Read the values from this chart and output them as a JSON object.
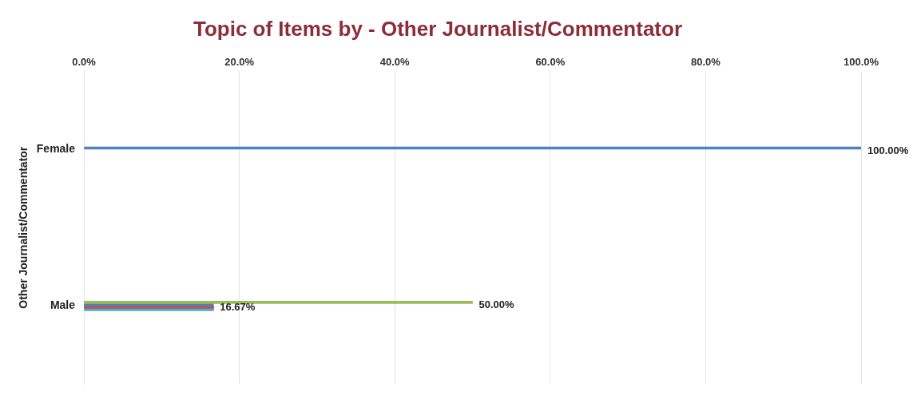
{
  "chart_data": {
    "type": "bar",
    "orientation": "horizontal",
    "title": "Topic of Items by - Other Journalist/Commentator",
    "ylabel": "Other Journalist/Commentator",
    "categories": [
      "Female",
      "Male"
    ],
    "series": [
      {
        "color": "#9bbb59",
        "values": [
          null,
          50
        ],
        "value_labels": [
          null,
          "50.00%"
        ]
      },
      {
        "color": "#4f81bd",
        "values": [
          100,
          16.67
        ],
        "value_labels": [
          "100.00%",
          "16.67%"
        ]
      },
      {
        "color": "#c0504d",
        "values": [
          null,
          16.7
        ],
        "value_labels": [
          null,
          null
        ]
      },
      {
        "color": "#4bacc6",
        "values": [
          null,
          16.7
        ],
        "value_labels": [
          null,
          null
        ]
      }
    ],
    "xlim": [
      0,
      100
    ],
    "xticks": [
      {
        "value": 0,
        "label": "0.0%"
      },
      {
        "value": 20,
        "label": "20.0%"
      },
      {
        "value": 40,
        "label": "40.0%"
      },
      {
        "value": 60,
        "label": "60.0%"
      },
      {
        "value": 80,
        "label": "80.0%"
      },
      {
        "value": 100,
        "label": "100.0%"
      }
    ],
    "grid": "x",
    "legend": false
  }
}
